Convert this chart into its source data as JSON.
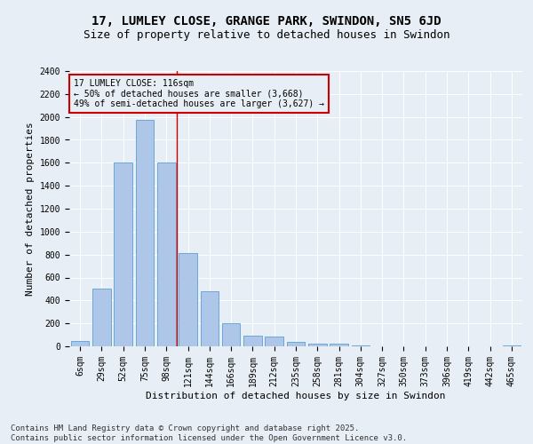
{
  "title": "17, LUMLEY CLOSE, GRANGE PARK, SWINDON, SN5 6JD",
  "subtitle": "Size of property relative to detached houses in Swindon",
  "xlabel": "Distribution of detached houses by size in Swindon",
  "ylabel": "Number of detached properties",
  "categories": [
    "6sqm",
    "29sqm",
    "52sqm",
    "75sqm",
    "98sqm",
    "121sqm",
    "144sqm",
    "166sqm",
    "189sqm",
    "212sqm",
    "235sqm",
    "258sqm",
    "281sqm",
    "304sqm",
    "327sqm",
    "350sqm",
    "373sqm",
    "396sqm",
    "419sqm",
    "442sqm",
    "465sqm"
  ],
  "values": [
    50,
    500,
    1600,
    1975,
    1600,
    810,
    480,
    200,
    95,
    85,
    35,
    20,
    20,
    10,
    0,
    0,
    0,
    0,
    0,
    0,
    10
  ],
  "bar_color": "#aec6e8",
  "bar_edge_color": "#5a9fd4",
  "vline_x_index": 4.5,
  "vline_color": "#cc0000",
  "annotation_title": "17 LUMLEY CLOSE: 116sqm",
  "annotation_line1": "← 50% of detached houses are smaller (3,668)",
  "annotation_line2": "49% of semi-detached houses are larger (3,627) →",
  "annotation_box_color": "#cc0000",
  "ylim": [
    0,
    2400
  ],
  "yticks": [
    0,
    200,
    400,
    600,
    800,
    1000,
    1200,
    1400,
    1600,
    1800,
    2000,
    2200,
    2400
  ],
  "background_color": "#e8eef5",
  "grid_color": "#ffffff",
  "footer_line1": "Contains HM Land Registry data © Crown copyright and database right 2025.",
  "footer_line2": "Contains public sector information licensed under the Open Government Licence v3.0.",
  "title_fontsize": 10,
  "subtitle_fontsize": 9,
  "axis_label_fontsize": 8,
  "tick_fontsize": 7,
  "annotation_fontsize": 7,
  "footer_fontsize": 6.5
}
